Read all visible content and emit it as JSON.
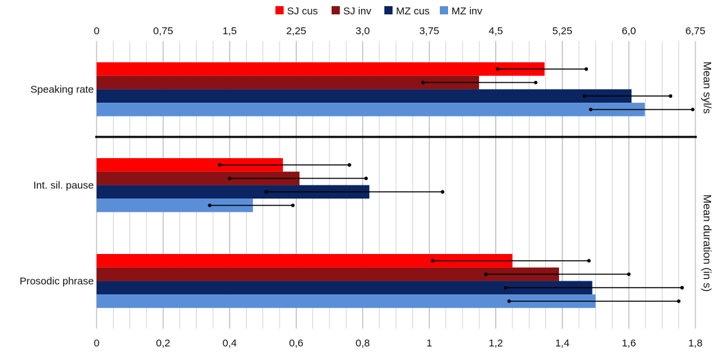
{
  "chart_data": [
    {
      "type": "bar",
      "orientation": "horizontal",
      "panel": "top",
      "categories": [
        "Speaking rate"
      ],
      "series": [
        {
          "name": "SJ cus",
          "values": [
            5.05
          ],
          "error_low": [
            4.52
          ],
          "error_high": [
            5.52
          ]
        },
        {
          "name": "SJ inv",
          "values": [
            4.31
          ],
          "error_low": [
            3.68
          ],
          "error_high": [
            4.95
          ]
        },
        {
          "name": "MZ cus",
          "values": [
            6.03
          ],
          "error_low": [
            5.5
          ],
          "error_high": [
            6.47
          ]
        },
        {
          "name": "MZ inv",
          "values": [
            6.18
          ],
          "error_low": [
            5.57
          ],
          "error_high": [
            6.72
          ]
        }
      ],
      "xlim": [
        0,
        6.75
      ],
      "x_ticks": [
        "0",
        "0,75",
        "1,5",
        "2,25",
        "3,0",
        "3,75",
        "4,5",
        "5,25",
        "6,0",
        "6,75"
      ],
      "x_axis_position": "top",
      "ylabel": "Mean syl/s",
      "grid": true
    },
    {
      "type": "bar",
      "orientation": "horizontal",
      "panel": "bottom",
      "categories": [
        "Int. sil. pause",
        "Prosodic phrase"
      ],
      "series": [
        {
          "name": "SJ cus",
          "values": [
            0.56,
            1.25
          ],
          "error_low": [
            0.37,
            1.01
          ],
          "error_high": [
            0.76,
            1.48
          ]
        },
        {
          "name": "SJ inv",
          "values": [
            0.61,
            1.39
          ],
          "error_low": [
            0.4,
            1.17
          ],
          "error_high": [
            0.81,
            1.6
          ]
        },
        {
          "name": "MZ cus",
          "values": [
            0.82,
            1.49
          ],
          "error_low": [
            0.51,
            1.23
          ],
          "error_high": [
            1.04,
            1.76
          ]
        },
        {
          "name": "MZ inv",
          "values": [
            0.47,
            1.5
          ],
          "error_low": [
            0.34,
            1.24
          ],
          "error_high": [
            0.59,
            1.75
          ]
        }
      ],
      "xlim": [
        0,
        1.8
      ],
      "x_ticks": [
        "0",
        "0,2",
        "0,4",
        "0,6",
        "0,8",
        "1",
        "1,2",
        "1,4",
        "1,6",
        "1,8"
      ],
      "x_axis_position": "bottom",
      "ylabel": "Mean duration (in s)",
      "grid": true
    }
  ],
  "legend": {
    "placement": "top-center",
    "items": [
      {
        "name": "SJ cus",
        "color": "#ff0000"
      },
      {
        "name": "SJ inv",
        "color": "#8b1214"
      },
      {
        "name": "MZ cus",
        "color": "#0b2462"
      },
      {
        "name": "MZ inv",
        "color": "#5a8fd8"
      }
    ]
  },
  "colors": {
    "grid": "#c8c8c8",
    "divider": "#000000",
    "error_bar": "#000000"
  }
}
